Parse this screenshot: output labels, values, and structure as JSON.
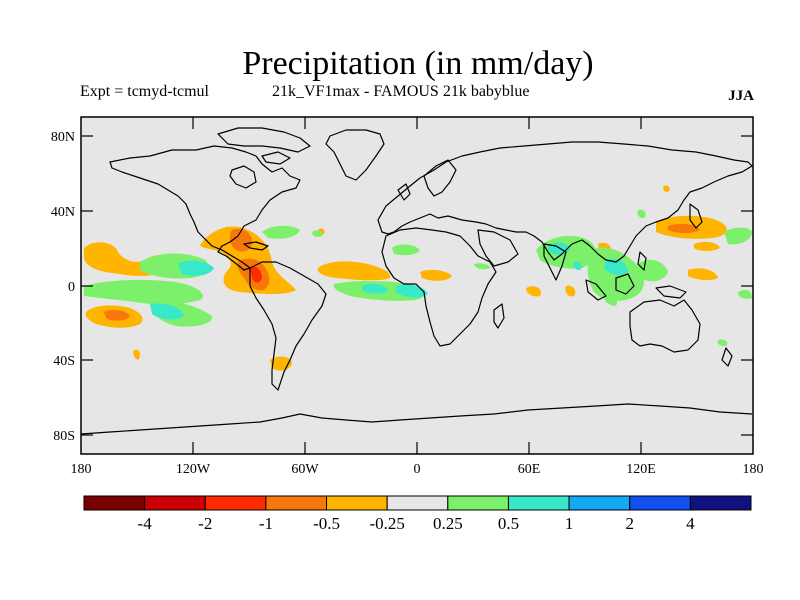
{
  "title": "Precipitation (in mm/day)",
  "subtitle_left": "Expt = tcmyd-tcmul",
  "subtitle_center": "21k_VF1max - FAMOUS 21k babyblue",
  "season": "JJA",
  "lat_labels": [
    "80N",
    "40N",
    "0",
    "40S",
    "80S"
  ],
  "lon_labels": [
    "180",
    "120W",
    "60W",
    "0",
    "60E",
    "120E",
    "180"
  ],
  "colorbar": {
    "colors": [
      "#7a0000",
      "#cc0000",
      "#ff2a00",
      "#f7780a",
      "#ffb400",
      "#e6e6e6",
      "#7cf06a",
      "#38e8c8",
      "#16a8f5",
      "#1050f0",
      "#101080"
    ],
    "labels": [
      "-4",
      "-2",
      "-1",
      "-0.5",
      "-0.25",
      "0.25",
      "0.5",
      "1",
      "2",
      "4"
    ]
  },
  "colors": {
    "ocean": "#e6e6e6",
    "orange": "#ffb400",
    "dark_orange": "#f7780a",
    "red": "#ff2a00",
    "green": "#7cf06a",
    "cyan": "#38e8c8"
  }
}
